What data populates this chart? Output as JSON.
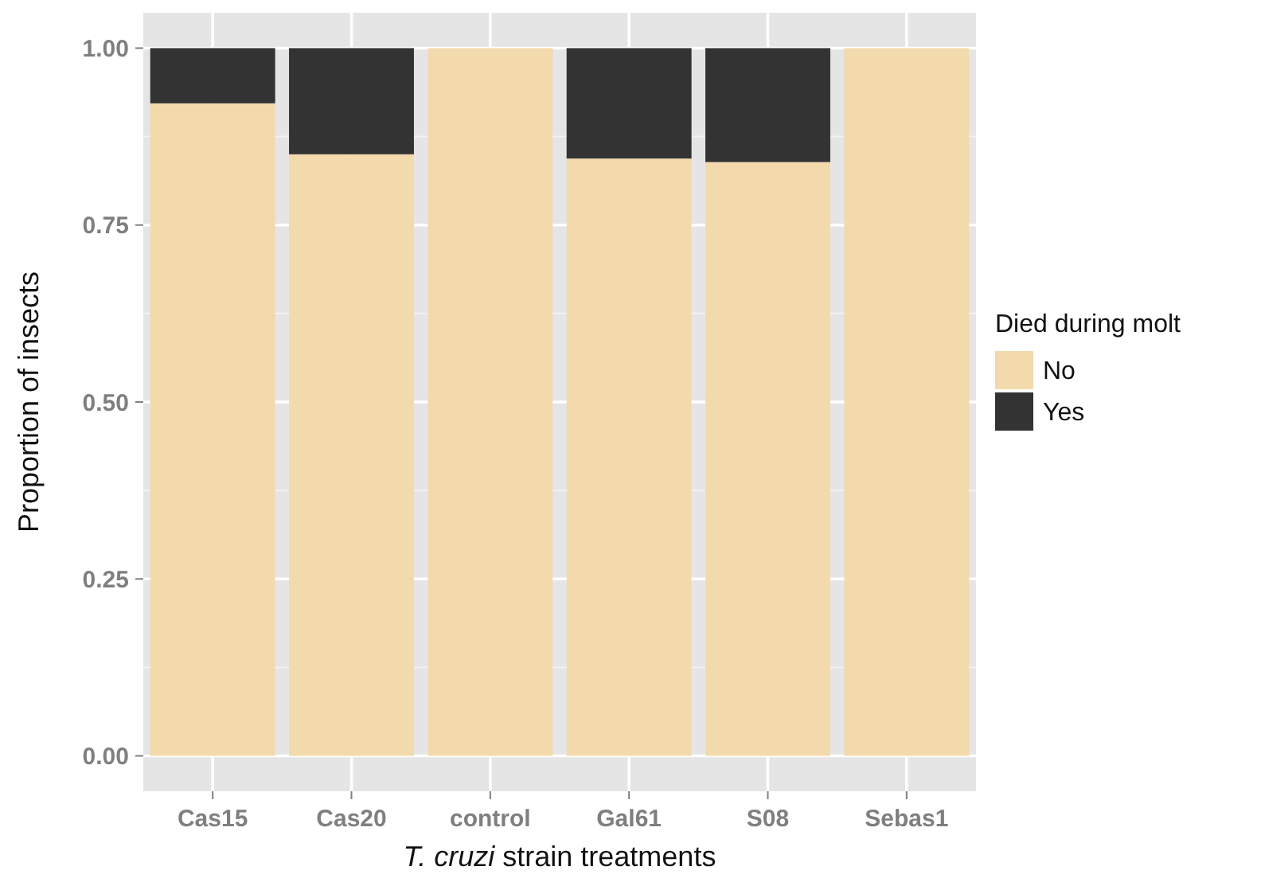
{
  "chart_data": {
    "type": "bar",
    "stacked": true,
    "xlabel": "T. cruzi strain treatments",
    "ylabel": "Proportion of insects",
    "legend_title": "Died during molt",
    "legend": "right",
    "grid": true,
    "categories": [
      "Cas15",
      "Cas20",
      "control",
      "Gal61",
      "S08",
      "Sebas1"
    ],
    "series": [
      {
        "name": "No",
        "color": "#f3daad",
        "values": [
          0.922,
          0.85,
          1,
          0.844,
          0.839,
          1
        ]
      },
      {
        "name": "Yes",
        "color": "#333333",
        "values": [
          0.078,
          0.15,
          0,
          0.156,
          0.161,
          0
        ]
      }
    ],
    "ylim": [
      -0.05,
      1.05
    ],
    "yticks": [
      {
        "value": 0,
        "label": "0.00"
      },
      {
        "value": 0.25,
        "label": "0.25"
      },
      {
        "value": 0.5,
        "label": "0.50"
      },
      {
        "value": 0.75,
        "label": "0.75"
      },
      {
        "value": 1,
        "label": "1.00"
      }
    ]
  }
}
